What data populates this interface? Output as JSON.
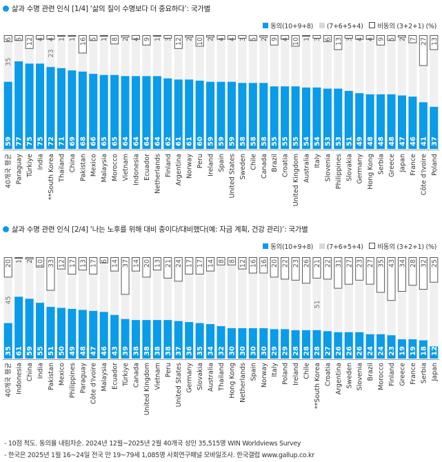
{
  "colors": {
    "agree": "#0a9be9",
    "mid": "#f0f0f0",
    "disagree_fill": "#ffffff",
    "disagree_stroke": "#555555",
    "axis": "#999999"
  },
  "legend": {
    "agree": "동의(10+9+8)",
    "mid": "(7+6+5+4)",
    "disagree": "비동의 (3+2+1) (%)"
  },
  "footnotes": [
    "- 10점 척도. 동의율 내림차순. 2024년 12월~2025년 2월 40개국 성인 35,515명 WIN Worldviews Survey",
    "- 한국은 2025년 1월 16~24일 전국 만 19~79세 1,085명 사회연구패널 모바일조사. 한국갤럽 www.gallup.co.kr"
  ],
  "chart_data": [
    {
      "type": "bar",
      "stacked": true,
      "title": "삶과 수명 관련 인식 [1/4] ‘삶의 질이 수명보다 더 중요하다’: 국가별",
      "ylim": [
        0,
        100
      ],
      "categories": [
        "40개국 평균",
        "Paraguay",
        "Türkiye",
        "India",
        "**South Korea",
        "Thailand",
        "China",
        "Pakistan",
        "Mexico",
        "Malaysia",
        "Morocco",
        "Vietnam",
        "Indonesia",
        "Ecuador",
        "Netherlands",
        "Finland",
        "Argentina",
        "Norway",
        "Peru",
        "Ireland",
        "Spain",
        "United States",
        "Sweden",
        "Chile",
        "Canada",
        "Brazil",
        "Croatia",
        "United Kingdom",
        "Australia",
        "Italy",
        "Slovenia",
        "Philippines",
        "Slovakia",
        "Germany",
        "Hong Kong",
        "Serbia",
        "Greece",
        "Japan",
        "France",
        "Côte d'Ivoire",
        "Poland"
      ],
      "series": [
        {
          "name": "동의(10+9+8)",
          "values": [
            59,
            77,
            75,
            75,
            72,
            71,
            69,
            68,
            66,
            65,
            65,
            64,
            64,
            64,
            64,
            62,
            61,
            61,
            60,
            59,
            59,
            59,
            58,
            58,
            58,
            55,
            55,
            55,
            54,
            54,
            53,
            53,
            51,
            49,
            48,
            48,
            48,
            47,
            46,
            41,
            37
          ]
        },
        {
          "name": "비동의 (3+2+1)",
          "values": [
            6,
            5,
            12,
            4,
            4,
            1,
            1,
            16,
            5,
            1,
            8,
            2,
            4,
            9,
            1,
            3,
            12,
            2,
            10,
            2,
            4,
            4,
            3,
            5,
            2,
            9,
            4,
            10,
            1,
            3,
            6,
            13,
            3,
            4,
            4,
            9,
            5,
            2,
            7,
            27,
            13
          ]
        }
      ],
      "mid_labels": {
        "0": "35",
        "4": "23"
      }
    },
    {
      "type": "bar",
      "stacked": true,
      "title": "삶과 수명 관련 인식 [2/4] ‘나는 노후를 위해 대비 중이다/대비했다(예: 자금 계획, 건강 관리)’: 국가별",
      "ylim": [
        0,
        100
      ],
      "categories": [
        "40개국 평균",
        "Indonesia",
        "China",
        "India",
        "Pakistan",
        "Mexico",
        "Philippines",
        "Paraguay",
        "Côte d'Ivoire",
        "Malaysia",
        "Ecuador",
        "Türkiye",
        "Canada",
        "United Kingdom",
        "Vietnam",
        "Peru",
        "United States",
        "Germany",
        "Slovakia",
        "Australia",
        "Thailand",
        "Hong Kong",
        "Netherlands",
        "Spain",
        "Norway",
        "Italy",
        "Poland",
        "Ireland",
        "Chile",
        "**South Korea",
        "Croatia",
        "Argentina",
        "Sweden",
        "Slovenia",
        "Brazil",
        "Morocco",
        "Finland",
        "Greece",
        "France",
        "Serbia",
        "Japan"
      ],
      "series": [
        {
          "name": "동의(10+9+8)",
          "values": [
            35,
            61,
            59,
            55,
            51,
            50,
            49,
            48,
            47,
            46,
            43,
            39,
            38,
            38,
            38,
            38,
            37,
            36,
            35,
            34,
            32,
            30,
            30,
            30,
            30,
            29,
            29,
            28,
            28,
            28,
            27,
            26,
            26,
            26,
            24,
            24,
            23,
            19,
            19,
            18,
            12
          ]
        },
        {
          "name": "비동의 (3+2+1)",
          "values": [
            20,
            1,
            2,
            10,
            33,
            12,
            17,
            13,
            17,
            6,
            14,
            37,
            14,
            20,
            13,
            21,
            24,
            17,
            17,
            14,
            8,
            8,
            12,
            16,
            16,
            20,
            22,
            23,
            26,
            21,
            22,
            31,
            27,
            23,
            27,
            35,
            43,
            34,
            28,
            32,
            25
          ]
        }
      ],
      "mid_labels": {
        "0": "45",
        "29": "51"
      }
    }
  ]
}
